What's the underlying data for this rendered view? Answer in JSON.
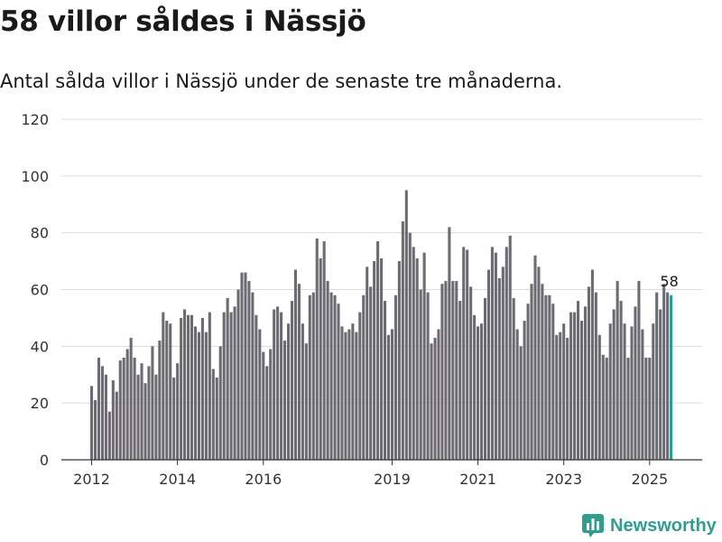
{
  "header": {
    "title": "58 villor såldes i Nässjö",
    "subtitle": "Antal sålda villor i Nässjö under de senaste tre månaderna."
  },
  "brand": {
    "name": "Newsworthy",
    "color": "#2f9e8f"
  },
  "chart_data": {
    "type": "bar",
    "ylim": [
      0,
      120
    ],
    "yticks": [
      0,
      20,
      40,
      60,
      80,
      100,
      120
    ],
    "xtick_labels": [
      {
        "label": "2012",
        "index": 0
      },
      {
        "label": "2014",
        "index": 24
      },
      {
        "label": "2016",
        "index": 48
      },
      {
        "label": "2019",
        "index": 84
      },
      {
        "label": "2021",
        "index": 108
      },
      {
        "label": "2023",
        "index": 132
      },
      {
        "label": "2025",
        "index": 156
      }
    ],
    "bar_color": "#6d6b72",
    "highlight_color": "#2a9d8f",
    "highlight_label": "58",
    "values": [
      26,
      21,
      36,
      33,
      30,
      17,
      28,
      24,
      35,
      36,
      39,
      43,
      36,
      30,
      34,
      27,
      33,
      40,
      30,
      42,
      52,
      49,
      48,
      29,
      34,
      50,
      53,
      51,
      51,
      47,
      45,
      50,
      45,
      52,
      32,
      29,
      40,
      52,
      57,
      52,
      54,
      60,
      66,
      66,
      63,
      59,
      51,
      46,
      38,
      33,
      39,
      53,
      54,
      52,
      42,
      48,
      56,
      67,
      62,
      48,
      41,
      58,
      59,
      78,
      71,
      77,
      63,
      59,
      58,
      55,
      47,
      45,
      46,
      48,
      45,
      52,
      58,
      68,
      61,
      70,
      77,
      71,
      56,
      44,
      46,
      58,
      70,
      84,
      95,
      80,
      75,
      71,
      60,
      73,
      59,
      41,
      43,
      46,
      62,
      63,
      82,
      63,
      63,
      56,
      75,
      74,
      61,
      51,
      47,
      48,
      57,
      67,
      75,
      73,
      64,
      68,
      75,
      79,
      57,
      46,
      40,
      49,
      55,
      62,
      72,
      68,
      62,
      58,
      58,
      55,
      44,
      45,
      48,
      43,
      52,
      52,
      56,
      49,
      54,
      61,
      67,
      59,
      44,
      37,
      36,
      48,
      53,
      63,
      56,
      48,
      36,
      47,
      54,
      63,
      46,
      36,
      36,
      48,
      59,
      53,
      62,
      59,
      58
    ]
  }
}
